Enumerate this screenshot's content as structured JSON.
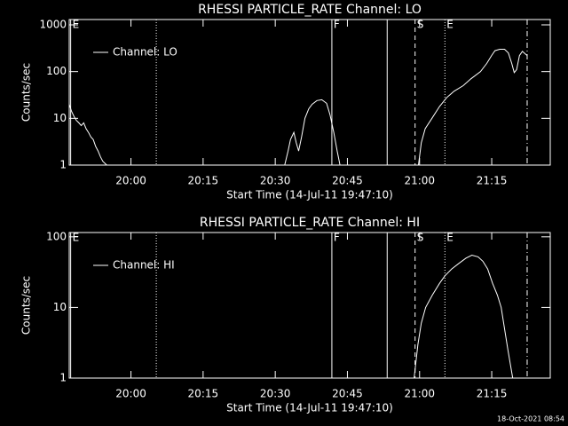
{
  "chart_data": [
    {
      "type": "line",
      "title": "RHESSI PARTICLE_RATE Channel: LO",
      "x_label": "Start Time (14-Jul-11 19:47:10)",
      "y_label": "Counts/sec",
      "log_y": true,
      "xlim": [
        0,
        100
      ],
      "ylim": [
        1,
        1300
      ],
      "xticks": [
        {
          "value": 12.833,
          "label": "20:00"
        },
        {
          "value": 27.833,
          "label": "20:15"
        },
        {
          "value": 42.833,
          "label": "20:30"
        },
        {
          "value": 57.833,
          "label": "20:45"
        },
        {
          "value": 72.833,
          "label": "21:00"
        },
        {
          "value": 87.833,
          "label": "21:15"
        }
      ],
      "yticks": [
        1000,
        100,
        10,
        1
      ],
      "markers": [
        {
          "x": 0.3,
          "style": "solid",
          "label": "E"
        },
        {
          "x": 18.1,
          "style": "dotted"
        },
        {
          "x": 54.6,
          "style": "solid",
          "label": "F"
        },
        {
          "x": 66.1,
          "style": "solid"
        },
        {
          "x": 71.9,
          "style": "dashed",
          "label": "S"
        },
        {
          "x": 78.1,
          "style": "dotted",
          "label": "E"
        },
        {
          "x": 95.2,
          "style": "dash-dot"
        }
      ],
      "series": [
        {
          "name": "Channel: LO",
          "color": "#ffffff",
          "x": [
            0,
            0.5,
            1,
            1.5,
            2,
            2.5,
            3,
            3.5,
            4,
            4.5,
            5,
            5.5,
            6,
            6.5,
            7,
            7.8,
            20,
            44.8,
            45.5,
            46,
            46.7,
            47.2,
            47.7,
            48.3,
            49,
            49.8,
            50.5,
            51.5,
            52.5,
            53.5,
            54.2,
            55,
            55.7,
            56.3,
            64,
            72.6,
            73.2,
            74,
            75.4,
            77,
            78.5,
            80,
            81.9,
            83.5,
            85.5,
            86.8,
            87.8,
            88.5,
            89.5,
            90.5,
            91.3,
            92,
            92.5,
            93,
            93.6,
            94.2,
            95.2
          ],
          "values": [
            20,
            14,
            11,
            9,
            8,
            7,
            8,
            6,
            5,
            4,
            3.5,
            2.5,
            2,
            1.5,
            1.2,
            1,
            null,
            1,
            2,
            3.5,
            5,
            3,
            2,
            4,
            10,
            16,
            20,
            24,
            25,
            21,
            12,
            5,
            2,
            1,
            null,
            1,
            3,
            6,
            10,
            18,
            28,
            38,
            50,
            70,
            100,
            150,
            220,
            280,
            300,
            300,
            250,
            150,
            95,
            110,
            220,
            270,
            220
          ]
        }
      ]
    },
    {
      "type": "line",
      "title": "RHESSI PARTICLE_RATE Channel: HI",
      "x_label": "Start Time (14-Jul-11 19:47:10)",
      "y_label": "Counts/sec",
      "log_y": true,
      "xlim": [
        0,
        100
      ],
      "ylim": [
        1,
        115
      ],
      "xticks": [
        {
          "value": 12.833,
          "label": "20:00"
        },
        {
          "value": 27.833,
          "label": "20:15"
        },
        {
          "value": 42.833,
          "label": "20:30"
        },
        {
          "value": 57.833,
          "label": "20:45"
        },
        {
          "value": 72.833,
          "label": "21:00"
        },
        {
          "value": 87.833,
          "label": "21:15"
        }
      ],
      "yticks": [
        100,
        10,
        1
      ],
      "markers": [
        {
          "x": 0.3,
          "style": "solid",
          "label": "E"
        },
        {
          "x": 18.1,
          "style": "dotted"
        },
        {
          "x": 54.6,
          "style": "solid",
          "label": "F"
        },
        {
          "x": 66.1,
          "style": "solid"
        },
        {
          "x": 71.9,
          "style": "dashed",
          "label": "S"
        },
        {
          "x": 78.1,
          "style": "dotted",
          "label": "E"
        },
        {
          "x": 95.2,
          "style": "dash-dot"
        }
      ],
      "series": [
        {
          "name": "Channel: HI",
          "color": "#ffffff",
          "x": [
            71.7,
            72.5,
            73.2,
            74.1,
            75.5,
            77,
            78.1,
            79.5,
            81,
            82.5,
            83.7,
            85,
            86,
            87,
            88,
            89,
            89.8,
            90.5,
            91.2,
            92.2
          ],
          "values": [
            1,
            3,
            6,
            10,
            15,
            22,
            28,
            35,
            42,
            50,
            55,
            52,
            45,
            35,
            22,
            15,
            10,
            5,
            2.5,
            1
          ]
        }
      ]
    }
  ],
  "footer": "18-Oct-2021 08:54"
}
